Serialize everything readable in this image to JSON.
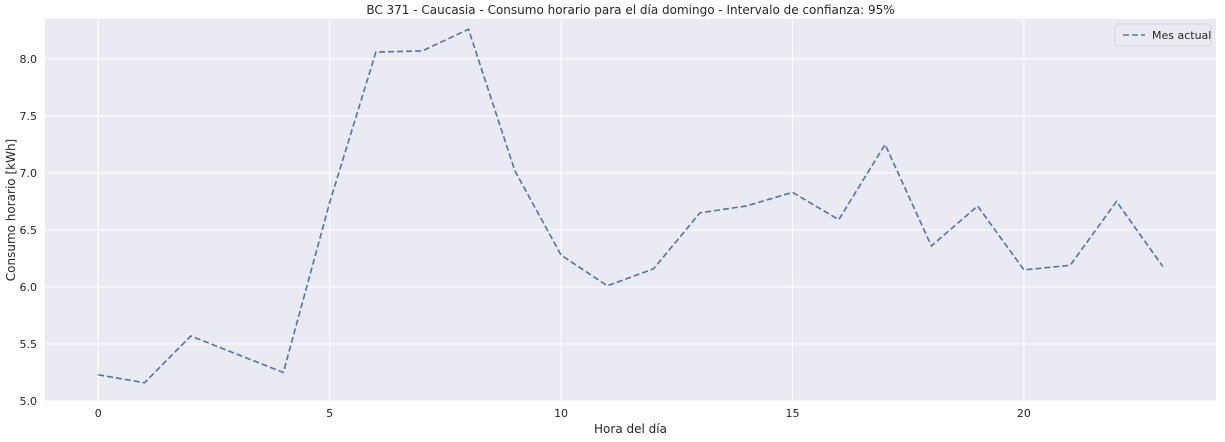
{
  "chart_data": {
    "type": "line",
    "title": "BC 371 - Caucasia - Consumo horario para el día domingo - Intervalo de confianza: 95%",
    "xlabel": "Hora del día",
    "ylabel": "Consumo horario [kWh]",
    "xlim": [
      -1.15,
      24.15
    ],
    "ylim": [
      5.0,
      8.35
    ],
    "xticks": [
      0,
      5,
      10,
      15,
      20
    ],
    "yticks": [
      5.0,
      5.5,
      6.0,
      6.5,
      7.0,
      7.5,
      8.0
    ],
    "xtick_labels": [
      "0",
      "5",
      "10",
      "15",
      "20"
    ],
    "ytick_labels": [
      "5.0",
      "5.5",
      "6.0",
      "6.5",
      "7.0",
      "7.5",
      "8.0"
    ],
    "grid": true,
    "legend_position": "top-right",
    "series": [
      {
        "name": "Mes actual",
        "color": "#4c72b0",
        "line_style": "dashed",
        "x": [
          0,
          1,
          2,
          3,
          4,
          5,
          6,
          7,
          8,
          9,
          10,
          11,
          12,
          13,
          14,
          15,
          16,
          17,
          18,
          19,
          20,
          21,
          22,
          23
        ],
        "y": [
          5.23,
          5.16,
          5.57,
          5.41,
          5.25,
          6.74,
          8.06,
          8.07,
          8.26,
          7.02,
          6.28,
          6.01,
          6.16,
          6.65,
          6.71,
          6.83,
          6.59,
          7.25,
          6.36,
          6.71,
          6.15,
          6.19,
          6.75,
          6.18
        ]
      }
    ],
    "colors": {
      "plot_background": "#eaeaf2",
      "grid": "#ffffff"
    }
  }
}
